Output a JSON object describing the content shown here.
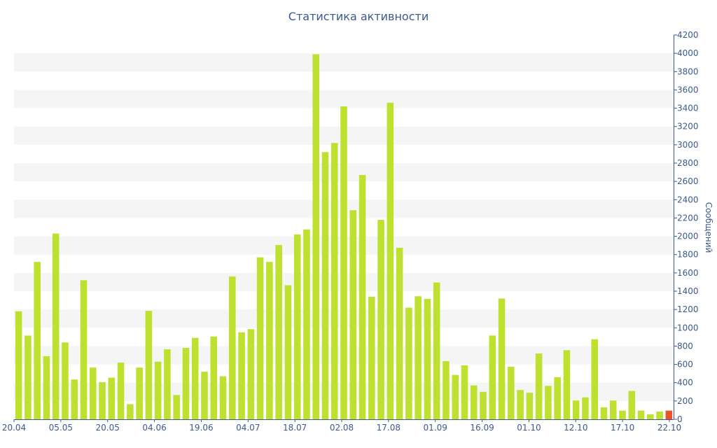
{
  "chart_data": {
    "type": "bar",
    "title": "Статистика активности",
    "xlabel": "",
    "ylabel": "Сообщений",
    "ylim": [
      0,
      4200
    ],
    "y_ticks": [
      0,
      200,
      400,
      600,
      800,
      1000,
      1200,
      1400,
      1600,
      1800,
      2000,
      2200,
      2400,
      2600,
      2800,
      3000,
      3200,
      3400,
      3600,
      3800,
      4000,
      4200
    ],
    "x_tick_labels": [
      "20.04",
      "05.05",
      "20.05",
      "04.06",
      "19.06",
      "04.07",
      "18.07",
      "02.08",
      "17.08",
      "01.09",
      "16.09",
      "01.10",
      "12.10",
      "17.10",
      "22.10"
    ],
    "grid": "alternating horizontal bands",
    "values": [
      1180,
      915,
      1720,
      690,
      2030,
      840,
      435,
      1520,
      565,
      405,
      455,
      620,
      165,
      565,
      1185,
      630,
      765,
      265,
      780,
      890,
      520,
      905,
      470,
      1560,
      950,
      985,
      1770,
      1720,
      1905,
      1465,
      2020,
      2075,
      3990,
      2920,
      3020,
      3420,
      2285,
      2670,
      1340,
      2180,
      3460,
      1875,
      1220,
      1345,
      1315,
      1495,
      635,
      485,
      590,
      370,
      300,
      915,
      1320,
      575,
      320,
      290,
      720,
      365,
      460,
      755,
      205,
      240,
      875,
      130,
      205,
      95,
      310,
      95,
      55,
      85,
      95
    ],
    "highlight_last": true,
    "colors": {
      "bar": "#bde12e",
      "bar_highlight": "#e8532d",
      "band": "#f5f5f5",
      "axis": "#3a5a8c",
      "text": "#3a5a8c"
    }
  }
}
